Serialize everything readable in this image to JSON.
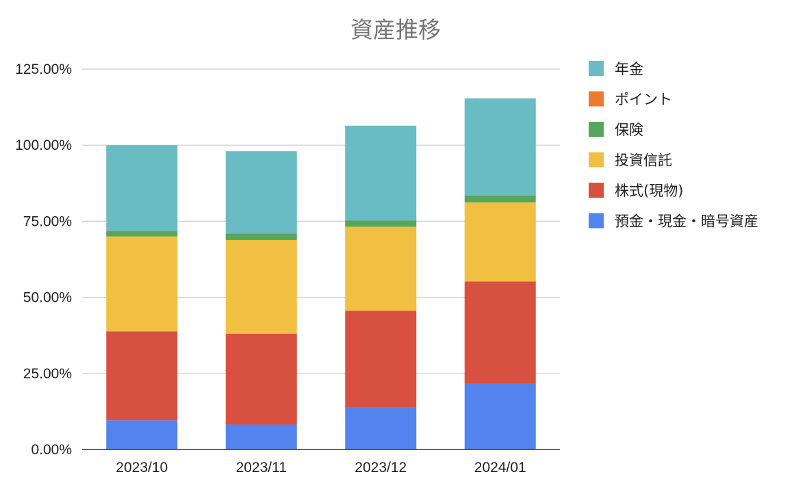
{
  "chart_data": {
    "type": "bar",
    "stacked": true,
    "title": "資産推移",
    "xlabel": "",
    "ylabel": "",
    "categories": [
      "2023/10",
      "2023/11",
      "2023/12",
      "2024/01"
    ],
    "ylim": [
      0,
      125
    ],
    "yticks": [
      0,
      25,
      50,
      75,
      100,
      125
    ],
    "ytick_labels": [
      "0.00%",
      "25.00%",
      "50.00%",
      "75.00%",
      "100.00%",
      "125.00%"
    ],
    "grid": true,
    "legend_position": "right",
    "series": [
      {
        "name": "預金・現金・暗号資産",
        "color": "#5383ec",
        "values": [
          9.6,
          8.2,
          13.8,
          21.8
        ]
      },
      {
        "name": "株式(現物)",
        "color": "#d85140",
        "values": [
          29.2,
          29.8,
          31.8,
          33.4
        ]
      },
      {
        "name": "投資信託",
        "color": "#f1bf42",
        "values": [
          31.2,
          30.8,
          27.6,
          26.0
        ]
      },
      {
        "name": "保険",
        "color": "#58a65c",
        "values": [
          1.8,
          2.2,
          2.0,
          2.2
        ]
      },
      {
        "name": "ポイント",
        "color": "#ec7a31",
        "values": [
          0,
          0,
          0,
          0
        ]
      },
      {
        "name": "年金",
        "color": "#69bcc4",
        "values": [
          28.2,
          27.0,
          31.2,
          32.0
        ]
      }
    ],
    "legend_order": [
      "年金",
      "ポイント",
      "保険",
      "投資信託",
      "株式(現物)",
      "預金・現金・暗号資産"
    ]
  }
}
